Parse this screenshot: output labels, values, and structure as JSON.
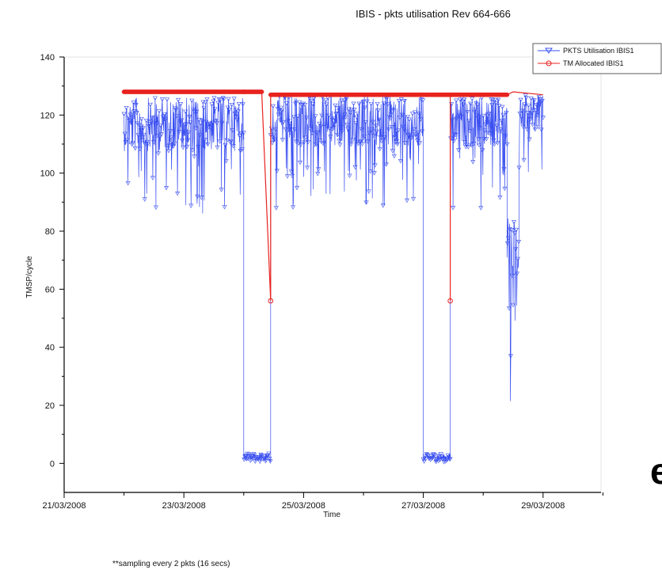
{
  "chart_data": {
    "type": "line",
    "title": "IBIS - pkts utilisation Rev 664-666",
    "xlabel": "Time",
    "ylabel": "TMSP/cycle",
    "footnote": "**sampling every 2 pkts (16 secs)",
    "edge_fragment": "e",
    "ylim": [
      -10,
      140
    ],
    "yticks": [
      0,
      20,
      40,
      60,
      80,
      100,
      120,
      140
    ],
    "xlim": [
      "2008-03-21",
      "2008-03-31"
    ],
    "xticks": [
      "21/03/2008",
      "23/03/2008",
      "25/03/2008",
      "27/03/2008",
      "29/03/2008"
    ],
    "grid": false,
    "legend_position": "top-right",
    "series": [
      {
        "name": "PKTS Utilisation IBIS1",
        "color": "#3a4ff0",
        "marker": "triangle-down",
        "style": "dense-oscillation",
        "segments": [
          {
            "x": [
              "2008-03-22",
              "2008-03-24"
            ],
            "y_range": [
              85,
              126
            ],
            "peak": 127
          },
          {
            "x": [
              "2008-03-24",
              "2008-03-24.45"
            ],
            "y_range": [
              0.5,
              3.5
            ]
          },
          {
            "x": [
              "2008-03-24.45",
              "2008-03-27"
            ],
            "y_range": [
              88,
              127
            ],
            "peak": 127
          },
          {
            "x": [
              "2008-03-27",
              "2008-03-27.45"
            ],
            "y_range": [
              0.5,
              3.5
            ]
          },
          {
            "x": [
              "2008-03-27.45",
              "2008-03-28.4"
            ],
            "y_range": [
              88,
              126
            ],
            "peak": 127
          },
          {
            "x": [
              "2008-03-28.4",
              "2008-03-28.6"
            ],
            "y_range": [
              1,
              85
            ],
            "peak": 85
          },
          {
            "x": [
              "2008-03-28.6",
              "2008-03-29"
            ],
            "y_range": [
              100,
              127
            ],
            "peak": 127
          }
        ]
      },
      {
        "name": "TM Allocated IBIS1",
        "color": "#e8231f",
        "marker": "circle",
        "style": "flat-level",
        "points": [
          {
            "x": "2008-03-22",
            "y": 128
          },
          {
            "x": "2008-03-24",
            "y": 128
          },
          {
            "x": "2008-03-24.3",
            "y": 128
          },
          {
            "x": "2008-03-24.45",
            "y": 56
          },
          {
            "x": "2008-03-24.45",
            "y": 127
          },
          {
            "x": "2008-03-27",
            "y": 127
          },
          {
            "x": "2008-03-27.45",
            "y": 127
          },
          {
            "x": "2008-03-27.45",
            "y": 56
          },
          {
            "x": "2008-03-27.45",
            "y": 127
          },
          {
            "x": "2008-03-28.4",
            "y": 127
          },
          {
            "x": "2008-03-28.5",
            "y": 128
          },
          {
            "x": "2008-03-29",
            "y": 127
          }
        ]
      }
    ]
  }
}
